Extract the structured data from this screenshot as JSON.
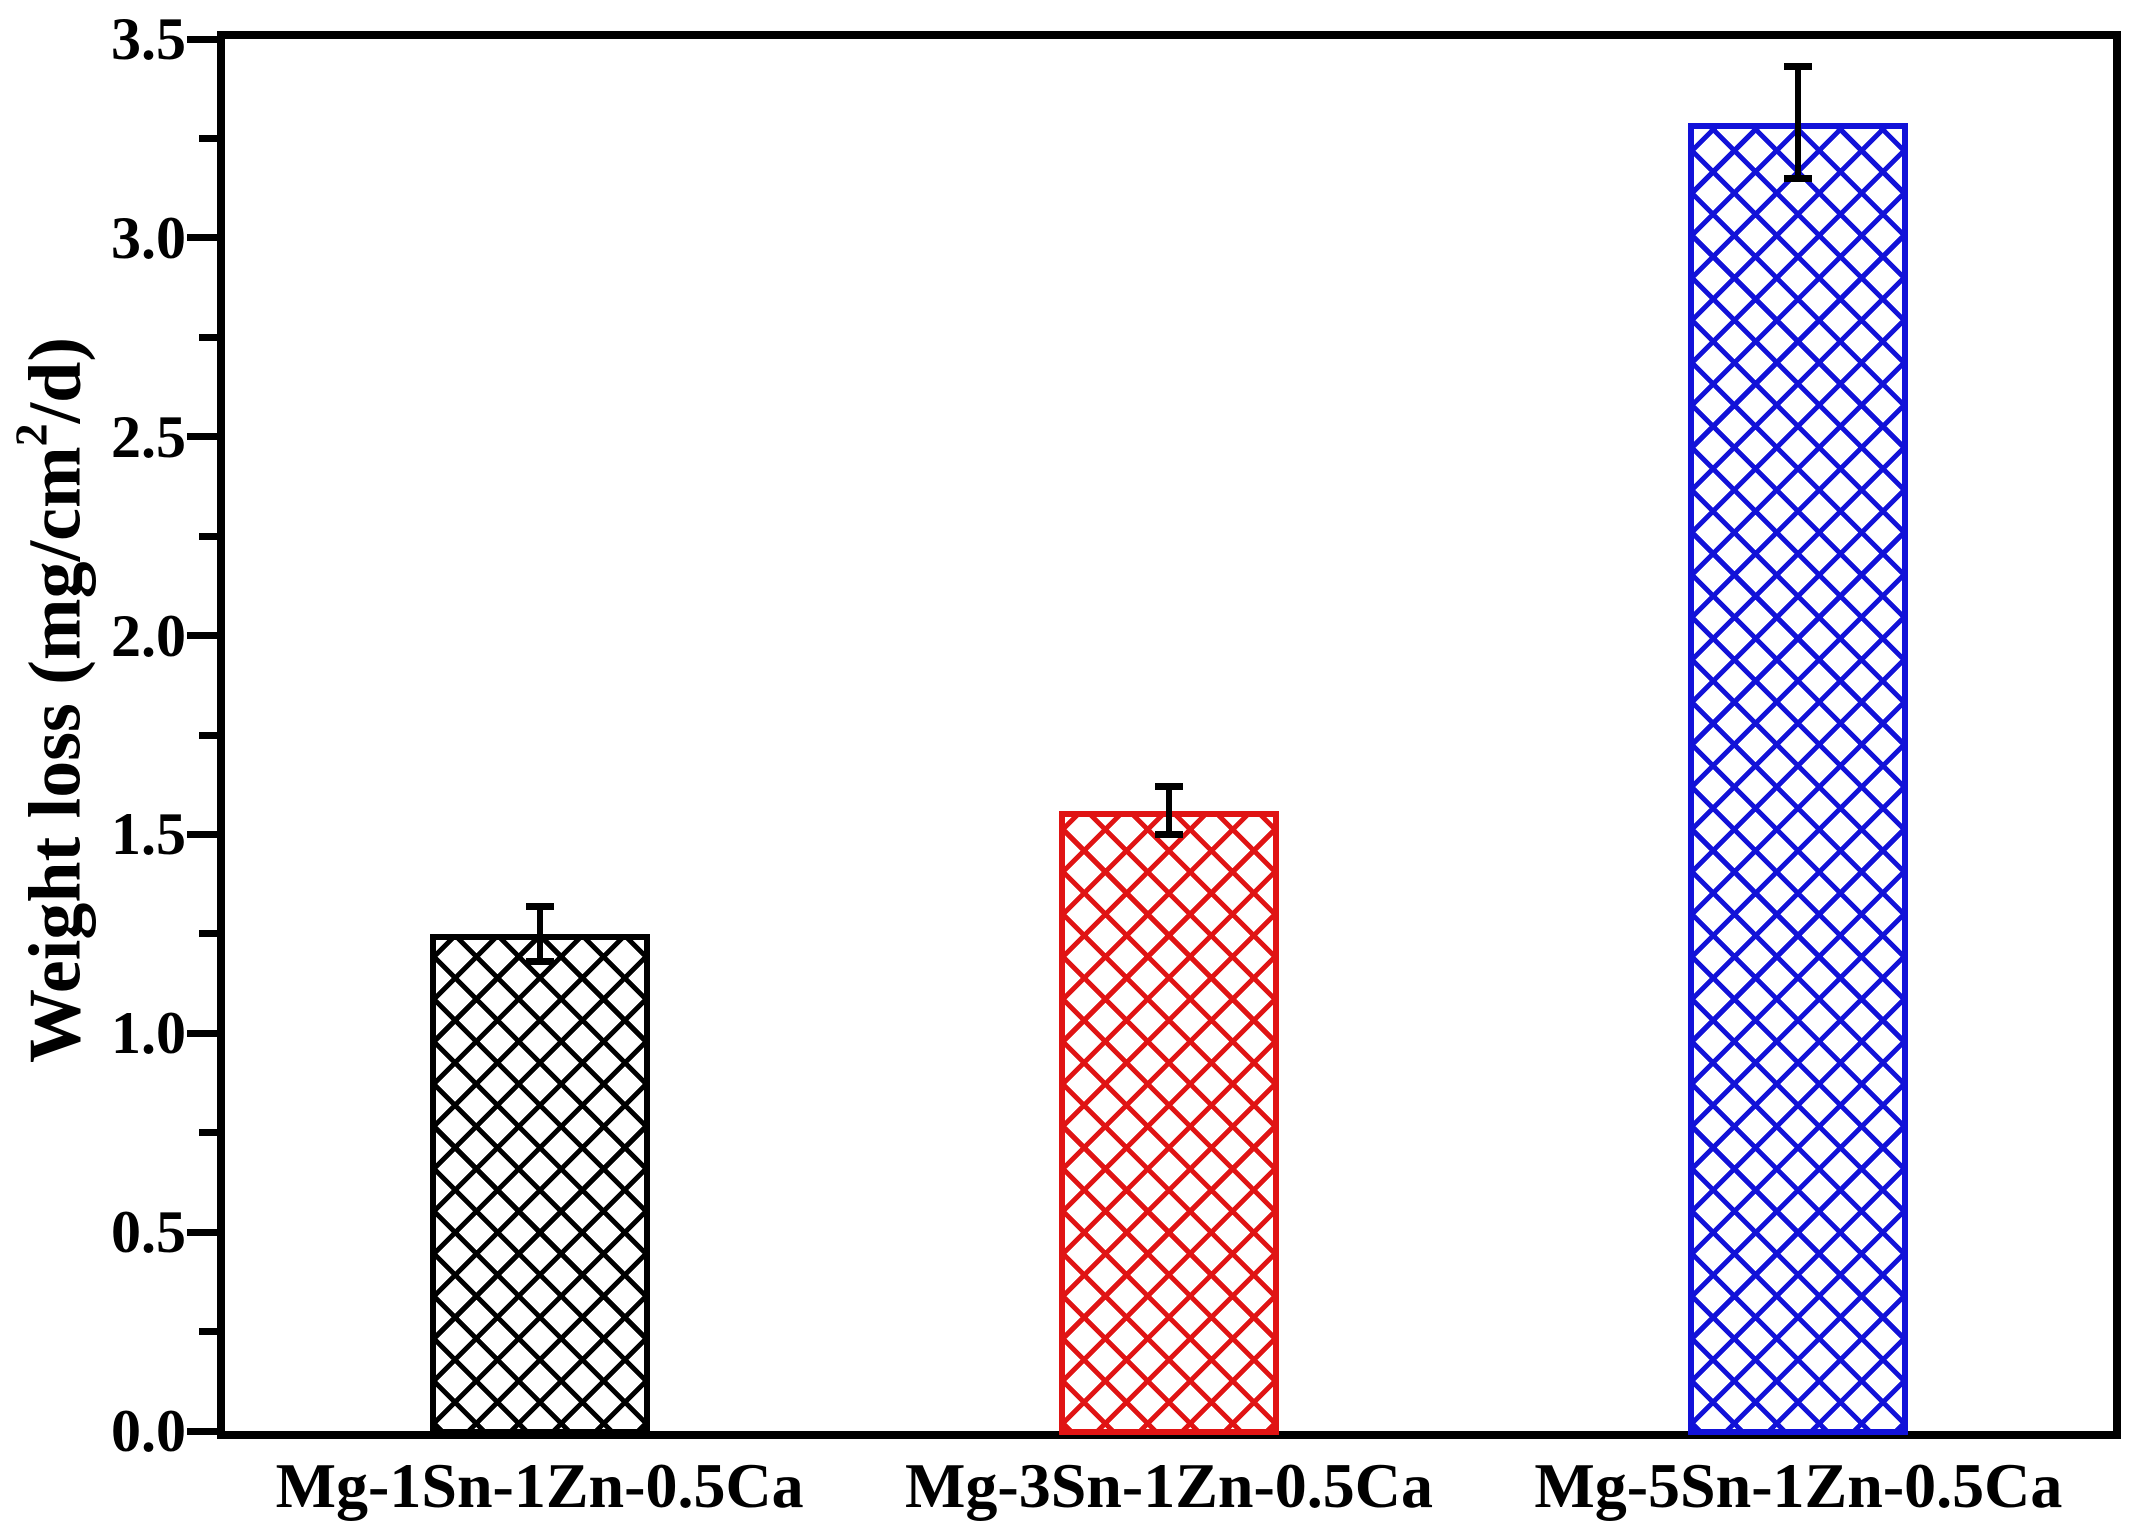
{
  "chart_data": {
    "type": "bar",
    "title": "",
    "categories": [
      "Mg-1Sn-1Zn-0.5Ca",
      "Mg-3Sn-1Zn-0.5Ca",
      "Mg-5Sn-1Zn-0.5Ca"
    ],
    "values": [
      1.25,
      1.56,
      3.29
    ],
    "errors": [
      0.07,
      0.06,
      0.14
    ],
    "bar_colors": [
      "#000000",
      "#e01414",
      "#1212d8"
    ],
    "error_bar_color": "#000000",
    "axis_color": "#000000",
    "ylabel": "Weight loss (mg/cm2/d)",
    "ylabel_pre": "Weight loss (mg/cm",
    "ylabel_sup": "2",
    "ylabel_post": "/d)",
    "xlabel": "",
    "ylim": [
      0,
      3.5
    ],
    "yticks": [
      "0.0",
      "0.5",
      "1.0",
      "1.5",
      "2.0",
      "2.5",
      "3.0",
      "3.5"
    ],
    "minor_tick_step": 0.25,
    "grid": false,
    "legend": "none",
    "hatch_style": "diagonal-crosshatch"
  }
}
